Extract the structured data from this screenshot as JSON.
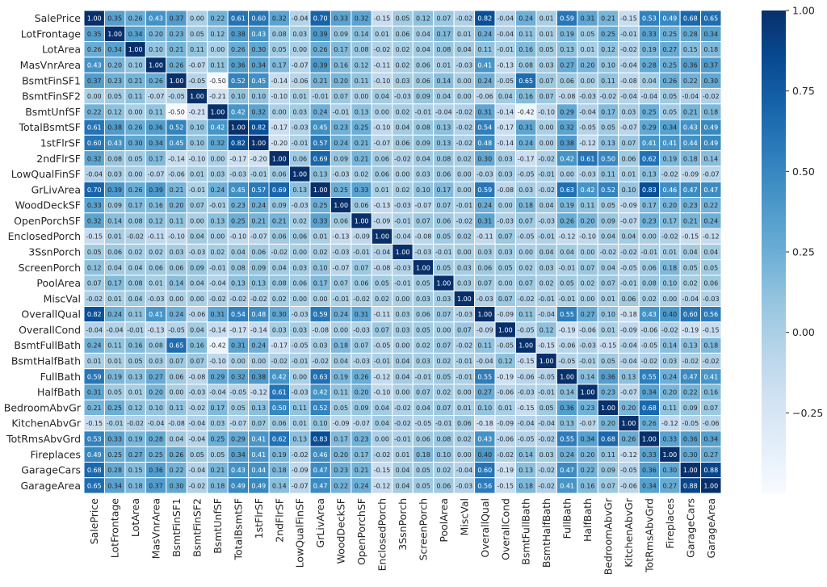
{
  "chart_data": {
    "type": "heatmap",
    "title": "",
    "xlabel": "",
    "ylabel": "",
    "colormap": "Blues",
    "vmin": -0.5,
    "vmax": 1.0,
    "variables": [
      "SalePrice",
      "LotFrontage",
      "LotArea",
      "MasVnrArea",
      "BsmtFinSF1",
      "BsmtFinSF2",
      "BsmtUnfSF",
      "TotalBsmtSF",
      "1stFlrSF",
      "2ndFlrSF",
      "LowQualFinSF",
      "GrLivArea",
      "WoodDeckSF",
      "OpenPorchSF",
      "EnclosedPorch",
      "3SsnPorch",
      "ScreenPorch",
      "PoolArea",
      "MiscVal",
      "OverallQual",
      "OverallCond",
      "BsmtFullBath",
      "BsmtHalfBath",
      "FullBath",
      "HalfBath",
      "BedroomAbvGr",
      "KitchenAbvGr",
      "TotRmsAbvGrd",
      "Fireplaces",
      "GarageCars",
      "GarageArea"
    ],
    "values": [
      [
        1.0,
        0.35,
        0.26,
        0.43,
        0.37,
        0.0,
        0.22,
        0.61,
        0.6,
        0.32,
        -0.04,
        0.7,
        0.33,
        0.32,
        -0.15,
        0.05,
        0.12,
        0.07,
        -0.02,
        0.82,
        -0.04,
        0.24,
        0.01,
        0.59,
        0.31,
        0.21,
        -0.15,
        0.53,
        0.49,
        0.68,
        0.65
      ],
      [
        0.35,
        1.0,
        0.34,
        0.2,
        0.23,
        0.05,
        0.12,
        0.38,
        0.43,
        0.08,
        0.03,
        0.39,
        0.09,
        0.14,
        0.01,
        0.06,
        0.04,
        0.17,
        0.01,
        0.24,
        -0.04,
        0.11,
        0.01,
        0.19,
        0.05,
        0.25,
        -0.01,
        0.33,
        0.25,
        0.28,
        0.34
      ],
      [
        0.26,
        0.34,
        1.0,
        0.1,
        0.21,
        0.11,
        -0.0,
        0.26,
        0.3,
        0.05,
        0.0,
        0.26,
        0.17,
        0.08,
        -0.02,
        0.02,
        0.04,
        0.08,
        0.04,
        0.11,
        -0.01,
        0.16,
        0.05,
        0.13,
        0.01,
        0.12,
        -0.02,
        0.19,
        0.27,
        0.15,
        0.18
      ],
      [
        0.43,
        0.2,
        0.1,
        1.0,
        0.26,
        -0.07,
        0.11,
        0.36,
        0.34,
        0.17,
        -0.07,
        0.39,
        0.16,
        0.12,
        -0.11,
        0.02,
        0.06,
        0.01,
        -0.03,
        0.41,
        -0.13,
        0.08,
        0.03,
        0.27,
        0.2,
        0.1,
        -0.04,
        0.28,
        0.25,
        0.36,
        0.37
      ],
      [
        0.37,
        0.23,
        0.21,
        0.26,
        1.0,
        -0.05,
        -0.5,
        0.52,
        0.45,
        -0.14,
        -0.06,
        0.21,
        0.2,
        0.11,
        -0.1,
        0.03,
        0.06,
        0.14,
        0.0,
        0.24,
        -0.05,
        0.65,
        0.07,
        0.06,
        0.0,
        0.11,
        -0.08,
        0.04,
        0.26,
        0.22,
        0.3
      ],
      [
        0.0,
        0.05,
        0.11,
        -0.07,
        -0.05,
        1.0,
        -0.21,
        0.1,
        0.1,
        -0.1,
        0.01,
        -0.01,
        0.07,
        0.0,
        0.04,
        -0.03,
        0.09,
        0.04,
        0.0,
        -0.06,
        0.04,
        0.16,
        0.07,
        -0.08,
        -0.03,
        -0.02,
        -0.04,
        -0.04,
        0.05,
        -0.04,
        -0.02
      ],
      [
        0.22,
        0.12,
        -0.0,
        0.11,
        -0.5,
        -0.21,
        1.0,
        0.42,
        0.32,
        0.0,
        0.03,
        0.24,
        -0.01,
        0.13,
        -0.0,
        0.02,
        -0.01,
        -0.04,
        -0.02,
        0.31,
        -0.14,
        -0.42,
        -0.1,
        0.29,
        -0.04,
        0.17,
        0.03,
        0.25,
        0.05,
        0.21,
        0.18
      ],
      [
        0.61,
        0.38,
        0.26,
        0.36,
        0.52,
        0.1,
        0.42,
        1.0,
        0.82,
        -0.17,
        -0.03,
        0.45,
        0.23,
        0.25,
        -0.1,
        0.04,
        0.08,
        0.13,
        -0.02,
        0.54,
        -0.17,
        0.31,
        0.0,
        0.32,
        -0.05,
        0.05,
        -0.07,
        0.29,
        0.34,
        0.43,
        0.49
      ],
      [
        0.6,
        0.43,
        0.3,
        0.34,
        0.45,
        0.1,
        0.32,
        0.82,
        1.0,
        -0.2,
        -0.01,
        0.57,
        0.24,
        0.21,
        -0.07,
        0.06,
        0.09,
        0.13,
        -0.02,
        0.48,
        -0.14,
        0.24,
        0.0,
        0.38,
        -0.12,
        0.13,
        0.07,
        0.41,
        0.41,
        0.44,
        0.49
      ],
      [
        0.32,
        0.08,
        0.05,
        0.17,
        -0.14,
        -0.1,
        0.0,
        -0.17,
        -0.2,
        1.0,
        0.06,
        0.69,
        0.09,
        0.21,
        0.06,
        -0.02,
        0.04,
        0.08,
        0.02,
        0.3,
        0.03,
        -0.17,
        -0.02,
        0.42,
        0.61,
        0.5,
        0.06,
        0.62,
        0.19,
        0.18,
        0.14
      ],
      [
        -0.04,
        0.03,
        0.0,
        -0.07,
        -0.06,
        0.01,
        0.03,
        -0.03,
        -0.01,
        0.06,
        1.0,
        0.13,
        -0.03,
        0.02,
        0.06,
        -0.0,
        0.03,
        0.06,
        -0.0,
        -0.03,
        0.03,
        -0.05,
        -0.01,
        -0.0,
        -0.03,
        0.11,
        0.01,
        0.13,
        -0.02,
        -0.09,
        -0.07
      ],
      [
        0.7,
        0.39,
        0.26,
        0.39,
        0.21,
        -0.01,
        0.24,
        0.45,
        0.57,
        0.69,
        0.13,
        1.0,
        0.25,
        0.33,
        0.01,
        0.02,
        0.1,
        0.17,
        -0.0,
        0.59,
        -0.08,
        0.03,
        -0.02,
        0.63,
        0.42,
        0.52,
        0.1,
        0.83,
        0.46,
        0.47,
        0.47
      ],
      [
        0.33,
        0.09,
        0.17,
        0.16,
        0.2,
        0.07,
        -0.01,
        0.23,
        0.24,
        0.09,
        -0.03,
        0.25,
        1.0,
        0.06,
        -0.13,
        -0.03,
        -0.07,
        0.07,
        -0.01,
        0.24,
        -0.0,
        0.18,
        0.04,
        0.19,
        0.11,
        0.05,
        -0.09,
        0.17,
        0.2,
        0.23,
        0.22
      ],
      [
        0.32,
        0.14,
        0.08,
        0.12,
        0.11,
        0.0,
        0.13,
        0.25,
        0.21,
        0.21,
        0.02,
        0.33,
        0.06,
        1.0,
        -0.09,
        -0.01,
        0.07,
        0.06,
        -0.02,
        0.31,
        -0.03,
        0.07,
        -0.03,
        0.26,
        0.2,
        0.09,
        -0.07,
        0.23,
        0.17,
        0.21,
        0.24
      ],
      [
        -0.15,
        0.01,
        -0.02,
        -0.11,
        -0.1,
        0.04,
        -0.0,
        -0.1,
        -0.07,
        0.06,
        0.06,
        0.01,
        -0.13,
        -0.09,
        1.0,
        -0.04,
        -0.08,
        0.05,
        0.02,
        -0.11,
        0.07,
        -0.05,
        -0.01,
        -0.12,
        -0.1,
        0.04,
        0.04,
        0.0,
        -0.02,
        -0.15,
        -0.12
      ],
      [
        0.05,
        0.06,
        0.02,
        0.02,
        0.03,
        -0.03,
        0.02,
        0.04,
        0.06,
        -0.02,
        -0.0,
        0.02,
        -0.03,
        -0.01,
        -0.04,
        1.0,
        -0.03,
        -0.01,
        0.0,
        0.03,
        0.03,
        -0.0,
        0.04,
        0.04,
        -0.0,
        -0.02,
        -0.02,
        -0.01,
        0.01,
        0.04,
        0.04
      ],
      [
        0.12,
        0.04,
        0.04,
        0.06,
        0.06,
        0.09,
        -0.01,
        0.08,
        0.09,
        0.04,
        0.03,
        0.1,
        -0.07,
        0.07,
        -0.08,
        -0.03,
        1.0,
        0.05,
        0.03,
        0.06,
        0.05,
        0.02,
        0.03,
        -0.01,
        0.07,
        0.04,
        -0.05,
        0.06,
        0.18,
        0.05,
        0.05
      ],
      [
        0.07,
        0.17,
        0.08,
        0.01,
        0.14,
        0.04,
        -0.04,
        0.13,
        0.13,
        0.08,
        0.06,
        0.17,
        0.07,
        0.06,
        0.05,
        -0.01,
        0.05,
        1.0,
        0.03,
        0.07,
        -0.0,
        0.07,
        0.02,
        0.05,
        0.02,
        0.07,
        -0.01,
        0.08,
        0.1,
        0.02,
        0.06
      ],
      [
        -0.02,
        0.01,
        0.04,
        -0.03,
        0.0,
        0.0,
        -0.02,
        -0.02,
        -0.02,
        0.02,
        -0.0,
        -0.0,
        -0.01,
        -0.02,
        0.02,
        0.0,
        0.03,
        0.03,
        1.0,
        -0.03,
        0.07,
        -0.02,
        -0.01,
        -0.01,
        0.0,
        0.01,
        0.06,
        0.02,
        0.0,
        -0.04,
        -0.03
      ],
      [
        0.82,
        0.24,
        0.11,
        0.41,
        0.24,
        -0.06,
        0.31,
        0.54,
        0.48,
        0.3,
        -0.03,
        0.59,
        0.24,
        0.31,
        -0.11,
        0.03,
        0.06,
        0.07,
        -0.03,
        1.0,
        -0.09,
        0.11,
        -0.04,
        0.55,
        0.27,
        0.1,
        -0.18,
        0.43,
        0.4,
        0.6,
        0.56
      ],
      [
        -0.04,
        -0.04,
        -0.01,
        -0.13,
        -0.05,
        0.04,
        -0.14,
        -0.17,
        -0.14,
        0.03,
        0.03,
        -0.08,
        -0.0,
        -0.03,
        0.07,
        0.03,
        0.05,
        -0.0,
        0.07,
        -0.09,
        1.0,
        -0.05,
        0.12,
        -0.19,
        -0.06,
        0.01,
        -0.09,
        -0.06,
        -0.02,
        -0.19,
        -0.15
      ],
      [
        0.24,
        0.11,
        0.16,
        0.08,
        0.65,
        0.16,
        -0.42,
        0.31,
        0.24,
        -0.17,
        -0.05,
        0.03,
        0.18,
        0.07,
        -0.05,
        -0.0,
        0.02,
        0.07,
        -0.02,
        0.11,
        -0.05,
        1.0,
        -0.15,
        -0.06,
        -0.03,
        -0.15,
        -0.04,
        -0.05,
        0.14,
        0.13,
        0.18
      ],
      [
        0.01,
        0.01,
        0.05,
        0.03,
        0.07,
        0.07,
        -0.1,
        0.0,
        0.0,
        -0.02,
        -0.01,
        -0.02,
        0.04,
        -0.03,
        -0.01,
        0.04,
        0.03,
        0.02,
        -0.01,
        -0.04,
        0.12,
        -0.15,
        1.0,
        -0.05,
        -0.01,
        0.05,
        -0.04,
        -0.02,
        0.03,
        -0.02,
        -0.02
      ],
      [
        0.59,
        0.19,
        0.13,
        0.27,
        0.06,
        -0.08,
        0.29,
        0.32,
        0.38,
        0.42,
        -0.0,
        0.63,
        0.19,
        0.26,
        -0.12,
        0.04,
        -0.01,
        0.05,
        -0.01,
        0.55,
        -0.19,
        -0.06,
        -0.05,
        1.0,
        0.14,
        0.36,
        0.13,
        0.55,
        0.24,
        0.47,
        0.41
      ],
      [
        0.31,
        0.05,
        0.01,
        0.2,
        0.0,
        -0.03,
        -0.04,
        -0.05,
        -0.12,
        0.61,
        -0.03,
        0.42,
        0.11,
        0.2,
        -0.1,
        -0.0,
        0.07,
        0.02,
        0.0,
        0.27,
        -0.06,
        -0.03,
        -0.01,
        0.14,
        1.0,
        0.23,
        -0.07,
        0.34,
        0.2,
        0.22,
        0.16
      ],
      [
        0.21,
        0.25,
        0.12,
        0.1,
        0.11,
        -0.02,
        0.17,
        0.05,
        0.13,
        0.5,
        0.11,
        0.52,
        0.05,
        0.09,
        0.04,
        -0.02,
        0.04,
        0.07,
        0.01,
        0.1,
        0.01,
        -0.15,
        0.05,
        0.36,
        0.23,
        1.0,
        0.2,
        0.68,
        0.11,
        0.09,
        0.07
      ],
      [
        -0.15,
        -0.01,
        -0.02,
        -0.04,
        -0.08,
        -0.04,
        0.03,
        -0.07,
        0.07,
        0.06,
        0.01,
        0.1,
        -0.09,
        -0.07,
        0.04,
        -0.02,
        -0.05,
        -0.01,
        0.06,
        -0.18,
        -0.09,
        -0.04,
        -0.04,
        0.13,
        -0.07,
        0.2,
        1.0,
        0.26,
        -0.12,
        -0.05,
        -0.06
      ],
      [
        0.53,
        0.33,
        0.19,
        0.28,
        0.04,
        -0.04,
        0.25,
        0.29,
        0.41,
        0.62,
        0.13,
        0.83,
        0.17,
        0.23,
        0.0,
        -0.01,
        0.06,
        0.08,
        0.02,
        0.43,
        -0.06,
        -0.05,
        -0.02,
        0.55,
        0.34,
        0.68,
        0.26,
        1.0,
        0.33,
        0.36,
        0.34
      ],
      [
        0.49,
        0.25,
        0.27,
        0.25,
        0.26,
        0.05,
        0.05,
        0.34,
        0.41,
        0.19,
        -0.02,
        0.46,
        0.2,
        0.17,
        -0.02,
        0.01,
        0.18,
        0.1,
        0.0,
        0.4,
        -0.02,
        0.14,
        0.03,
        0.24,
        0.2,
        0.11,
        -0.12,
        0.33,
        1.0,
        0.3,
        0.27
      ],
      [
        0.68,
        0.28,
        0.15,
        0.36,
        0.22,
        -0.04,
        0.21,
        0.43,
        0.44,
        0.18,
        -0.09,
        0.47,
        0.23,
        0.21,
        -0.15,
        0.04,
        0.05,
        0.02,
        -0.04,
        0.6,
        -0.19,
        0.13,
        -0.02,
        0.47,
        0.22,
        0.09,
        -0.05,
        0.36,
        0.3,
        1.0,
        0.88
      ],
      [
        0.65,
        0.34,
        0.18,
        0.37,
        0.3,
        -0.02,
        0.18,
        0.49,
        0.49,
        0.14,
        -0.07,
        0.47,
        0.22,
        0.24,
        -0.12,
        0.04,
        0.05,
        0.06,
        -0.03,
        0.56,
        -0.15,
        0.18,
        -0.02,
        0.41,
        0.16,
        0.07,
        -0.06,
        0.34,
        0.27,
        0.88,
        1.0
      ]
    ],
    "colorbar": {
      "ticks": [
        1.0,
        0.75,
        0.5,
        0.25,
        0.0,
        -0.25
      ],
      "tick_labels": [
        "1.00",
        "0.75",
        "0.50",
        "0.25",
        "0.00",
        "−0.25"
      ]
    }
  }
}
